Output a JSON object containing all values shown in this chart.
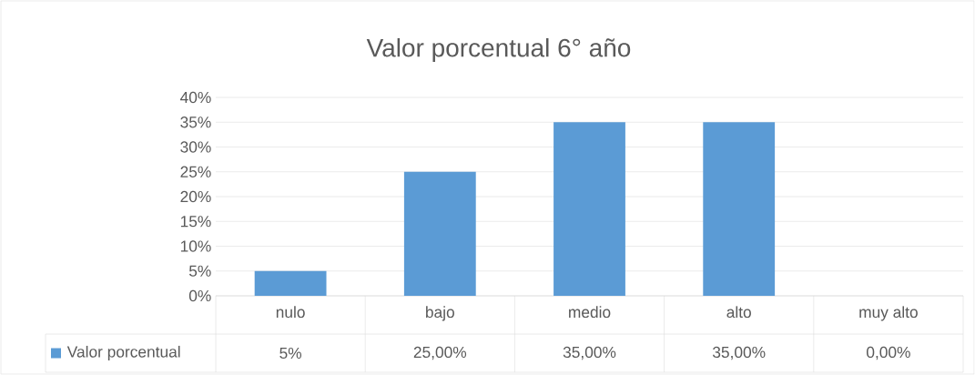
{
  "chart_data": {
    "type": "bar",
    "title": "Valor porcentual 6° año",
    "categories": [
      "nulo",
      "bajo",
      "medio",
      "alto",
      "muy alto"
    ],
    "series": [
      {
        "name": "Valor porcentual",
        "color": "#5b9bd5",
        "values": [
          5,
          25,
          35,
          35,
          0
        ],
        "value_labels": [
          "5%",
          "25,00%",
          "35,00%",
          "35,00%",
          "0,00%"
        ]
      }
    ],
    "ylim": [
      0,
      40
    ],
    "yticks": [
      {
        "value": 0,
        "label": "0%"
      },
      {
        "value": 5,
        "label": "5%"
      },
      {
        "value": 10,
        "label": "10%"
      },
      {
        "value": 15,
        "label": "15%"
      },
      {
        "value": 20,
        "label": "20%"
      },
      {
        "value": 25,
        "label": "25%"
      },
      {
        "value": 30,
        "label": "30%"
      },
      {
        "value": 35,
        "label": "35%"
      },
      {
        "value": 40,
        "label": "40%"
      }
    ],
    "grid": "y",
    "legend": "bottom"
  }
}
